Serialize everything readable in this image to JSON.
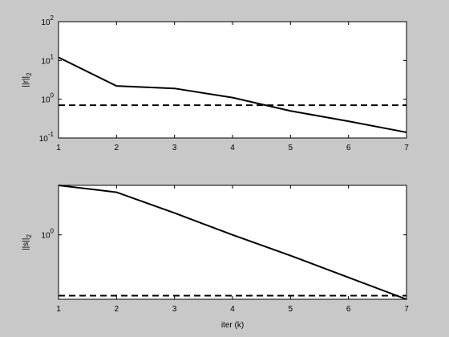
{
  "chart_data": [
    {
      "type": "line",
      "ylabel": "||r||",
      "ylabel_sub": "2",
      "x": [
        1,
        2,
        3,
        4,
        5,
        6,
        7
      ],
      "series": [
        {
          "color": "#000000",
          "dashed": false,
          "values": [
            12,
            2.2,
            1.9,
            1.1,
            0.5,
            0.27,
            0.14
          ]
        },
        {
          "color": "#000000",
          "dashed": true,
          "values": [
            0.7,
            0.7,
            0.7,
            0.7,
            0.7,
            0.7,
            0.7
          ]
        }
      ],
      "xlim": [
        1,
        7
      ],
      "xticks": [
        1,
        2,
        3,
        4,
        5,
        6,
        7
      ],
      "ylim": [
        0.1,
        100
      ],
      "log_y": true,
      "yticks": [
        {
          "value": 0.1,
          "label": "10",
          "power": "-1"
        },
        {
          "value": 1,
          "label": "10",
          "power": "0"
        },
        {
          "value": 10,
          "label": "10",
          "power": "1"
        },
        {
          "value": 100,
          "label": "10",
          "power": "2"
        }
      ]
    },
    {
      "type": "line",
      "ylabel": "||s||",
      "ylabel_sub": "2",
      "xlabel": "iter (k)",
      "x": [
        1,
        2,
        3,
        4,
        5,
        6,
        7
      ],
      "series": [
        {
          "color": "#000000",
          "dashed": false,
          "values": [
            2.9,
            2.5,
            1.6,
            1.0,
            0.64,
            0.4,
            0.25
          ]
        },
        {
          "color": "#000000",
          "dashed": true,
          "values": [
            0.27,
            0.27,
            0.27,
            0.27,
            0.27,
            0.27,
            0.27
          ]
        }
      ],
      "xlim": [
        1,
        7
      ],
      "xticks": [
        1,
        2,
        3,
        4,
        5,
        6,
        7
      ],
      "ylim": [
        0.25,
        2.9
      ],
      "log_y": true,
      "yticks": [
        {
          "value": 1,
          "label": "10",
          "power": "0"
        }
      ]
    }
  ]
}
